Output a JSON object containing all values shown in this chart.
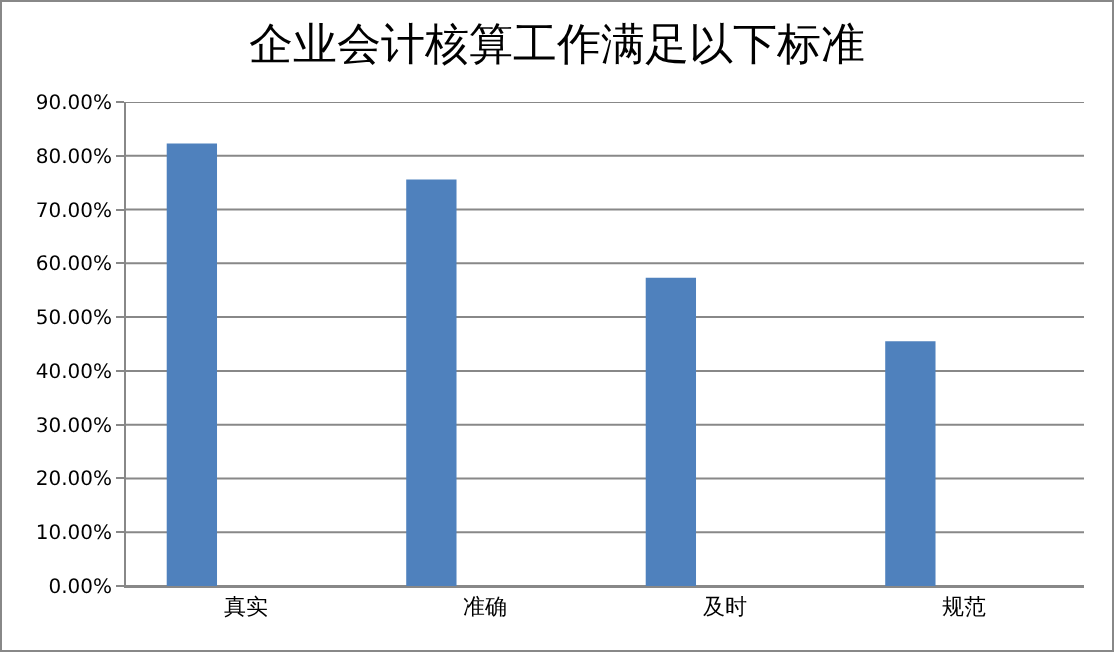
{
  "chart_data": {
    "type": "bar",
    "title": "企业会计核算工作满足以下标准",
    "categories": [
      "真实",
      "准确",
      "及时",
      "规范"
    ],
    "values": [
      82.3,
      75.6,
      57.3,
      45.5
    ],
    "color": "#4f81bd",
    "ylim": [
      0,
      90
    ],
    "yticks": [
      {
        "value": 0,
        "label": "0.00%"
      },
      {
        "value": 10,
        "label": "10.00%"
      },
      {
        "value": 20,
        "label": "20.00%"
      },
      {
        "value": 30,
        "label": "30.00%"
      },
      {
        "value": 40,
        "label": "40.00%"
      },
      {
        "value": 50,
        "label": "50.00%"
      },
      {
        "value": 60,
        "label": "60.00%"
      },
      {
        "value": 70,
        "label": "70.00%"
      },
      {
        "value": 80,
        "label": "80.00%"
      },
      {
        "value": 90,
        "label": "90.00%"
      }
    ],
    "grid": "y"
  }
}
